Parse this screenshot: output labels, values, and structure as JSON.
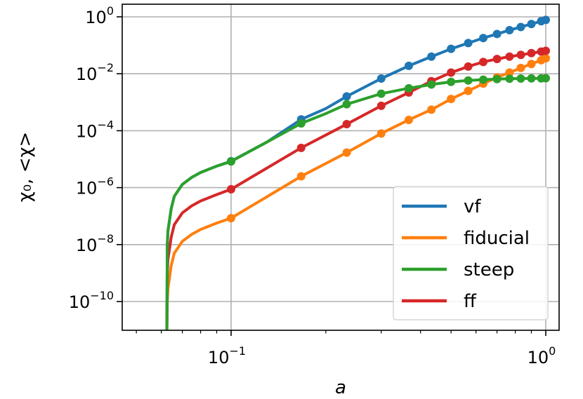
{
  "chart_data": {
    "type": "line",
    "xlabel": "a",
    "ylabel": "χ₀, <χ>",
    "xscale": "log",
    "yscale": "log",
    "xlim": [
      0.05,
      1.1
    ],
    "ylim": [
      1e-11,
      3
    ],
    "grid": true,
    "legend_placement": "bottom-right",
    "x_ticks": [
      {
        "value": 0.1,
        "base": "10",
        "exp": "−1"
      },
      {
        "value": 1,
        "base": "10",
        "exp": "0"
      }
    ],
    "y_ticks": [
      {
        "value": 1,
        "base": "10",
        "exp": "0"
      },
      {
        "value": 0.01,
        "base": "10",
        "exp": "−2"
      },
      {
        "value": 0.0001,
        "base": "10",
        "exp": "−4"
      },
      {
        "value": 1e-06,
        "base": "10",
        "exp": "−6"
      },
      {
        "value": 1e-08,
        "base": "10",
        "exp": "−8"
      },
      {
        "value": 1e-10,
        "base": "10",
        "exp": "−10"
      }
    ],
    "series": [
      {
        "name": "vf",
        "color": "#1f77b4",
        "curve": [
          [
            0.0625,
            1e-11
          ],
          [
            0.0627,
            1e-08
          ],
          [
            0.063,
            3e-08
          ],
          [
            0.0645,
            1.8e-07
          ],
          [
            0.066,
            5e-07
          ],
          [
            0.07,
            1.3e-06
          ],
          [
            0.075,
            2.3e-06
          ],
          [
            0.08,
            3.4e-06
          ],
          [
            0.09,
            5.7e-06
          ],
          [
            0.1,
            8.5e-06
          ],
          [
            0.13,
            4e-05
          ],
          [
            0.167,
            0.00025
          ],
          [
            0.2,
            0.0006
          ],
          [
            0.233,
            0.0016
          ],
          [
            0.3,
            0.0068
          ],
          [
            0.367,
            0.019
          ],
          [
            0.433,
            0.04
          ],
          [
            0.5,
            0.075
          ],
          [
            0.567,
            0.12
          ],
          [
            0.633,
            0.18
          ],
          [
            0.7,
            0.25
          ],
          [
            0.767,
            0.34
          ],
          [
            0.833,
            0.44
          ],
          [
            0.9,
            0.56
          ],
          [
            0.967,
            0.7
          ],
          [
            1.0,
            0.78
          ]
        ],
        "markers": [
          [
            0.1,
            8.5e-06
          ],
          [
            0.167,
            0.00025
          ],
          [
            0.233,
            0.0016
          ],
          [
            0.3,
            0.0068
          ],
          [
            0.367,
            0.019
          ],
          [
            0.433,
            0.04
          ],
          [
            0.5,
            0.075
          ],
          [
            0.567,
            0.12
          ],
          [
            0.633,
            0.18
          ],
          [
            0.7,
            0.25
          ],
          [
            0.767,
            0.34
          ],
          [
            0.833,
            0.44
          ],
          [
            0.9,
            0.56
          ],
          [
            0.967,
            0.7
          ],
          [
            1.0,
            0.78
          ]
        ]
      },
      {
        "name": "fiducial",
        "color": "#ff7f0e",
        "curve": [
          [
            0.0625,
            1e-11
          ],
          [
            0.0627,
            1e-10
          ],
          [
            0.063,
            2.8e-10
          ],
          [
            0.0645,
            1.8e-09
          ],
          [
            0.066,
            5e-09
          ],
          [
            0.07,
            1.3e-08
          ],
          [
            0.075,
            2.3e-08
          ],
          [
            0.08,
            3.4e-08
          ],
          [
            0.09,
            5.7e-08
          ],
          [
            0.1,
            8.5e-08
          ],
          [
            0.167,
            2.5e-06
          ],
          [
            0.233,
            1.7e-05
          ],
          [
            0.3,
            8e-05
          ],
          [
            0.367,
            0.00024
          ],
          [
            0.433,
            0.00055
          ],
          [
            0.5,
            0.0013
          ],
          [
            0.567,
            0.0025
          ],
          [
            0.633,
            0.0045
          ],
          [
            0.7,
            0.0075
          ],
          [
            0.767,
            0.011
          ],
          [
            0.833,
            0.016
          ],
          [
            0.9,
            0.022
          ],
          [
            0.967,
            0.03
          ],
          [
            1.0,
            0.035
          ]
        ],
        "markers": [
          [
            0.1,
            8.5e-08
          ],
          [
            0.167,
            2.5e-06
          ],
          [
            0.233,
            1.7e-05
          ],
          [
            0.3,
            8e-05
          ],
          [
            0.367,
            0.00024
          ],
          [
            0.433,
            0.00055
          ],
          [
            0.5,
            0.0013
          ],
          [
            0.567,
            0.0025
          ],
          [
            0.633,
            0.0045
          ],
          [
            0.7,
            0.0075
          ],
          [
            0.767,
            0.011
          ],
          [
            0.833,
            0.016
          ],
          [
            0.9,
            0.022
          ],
          [
            0.967,
            0.03
          ],
          [
            1.0,
            0.035
          ]
        ]
      },
      {
        "name": "steep",
        "color": "#2ca02c",
        "curve": [
          [
            0.0625,
            1e-11
          ],
          [
            0.0627,
            1e-08
          ],
          [
            0.063,
            3e-08
          ],
          [
            0.0645,
            1.8e-07
          ],
          [
            0.066,
            5e-07
          ],
          [
            0.07,
            1.3e-06
          ],
          [
            0.075,
            2.3e-06
          ],
          [
            0.08,
            3.4e-06
          ],
          [
            0.09,
            5.7e-06
          ],
          [
            0.1,
            8.3e-06
          ],
          [
            0.13,
            4e-05
          ],
          [
            0.167,
            0.00018
          ],
          [
            0.2,
            0.0004
          ],
          [
            0.233,
            0.00085
          ],
          [
            0.3,
            0.002
          ],
          [
            0.367,
            0.0031
          ],
          [
            0.433,
            0.0042
          ],
          [
            0.5,
            0.0052
          ],
          [
            0.567,
            0.0058
          ],
          [
            0.633,
            0.0062
          ],
          [
            0.7,
            0.0065
          ],
          [
            0.767,
            0.0067
          ],
          [
            0.833,
            0.0068
          ],
          [
            0.9,
            0.0069
          ],
          [
            0.967,
            0.0069
          ],
          [
            1.0,
            0.007
          ]
        ],
        "markers": [
          [
            0.1,
            8.3e-06
          ],
          [
            0.167,
            0.00018
          ],
          [
            0.233,
            0.00085
          ],
          [
            0.3,
            0.002
          ],
          [
            0.367,
            0.0031
          ],
          [
            0.433,
            0.0042
          ],
          [
            0.5,
            0.0052
          ],
          [
            0.567,
            0.0058
          ],
          [
            0.633,
            0.0062
          ],
          [
            0.7,
            0.0065
          ],
          [
            0.767,
            0.0067
          ],
          [
            0.833,
            0.0068
          ],
          [
            0.9,
            0.0069
          ],
          [
            0.967,
            0.0069
          ],
          [
            1.0,
            0.007
          ]
        ]
      },
      {
        "name": "ff",
        "color": "#d62728",
        "curve": [
          [
            0.0625,
            1e-11
          ],
          [
            0.0627,
            1e-09
          ],
          [
            0.063,
            3e-09
          ],
          [
            0.0645,
            1.8e-08
          ],
          [
            0.066,
            5e-08
          ],
          [
            0.07,
            1.3e-07
          ],
          [
            0.075,
            2.3e-07
          ],
          [
            0.08,
            3.4e-07
          ],
          [
            0.09,
            5.7e-07
          ],
          [
            0.1,
            8.8e-07
          ],
          [
            0.167,
            2.5e-05
          ],
          [
            0.233,
            0.00017
          ],
          [
            0.3,
            0.00075
          ],
          [
            0.367,
            0.0022
          ],
          [
            0.433,
            0.0055
          ],
          [
            0.5,
            0.011
          ],
          [
            0.567,
            0.018
          ],
          [
            0.633,
            0.026
          ],
          [
            0.7,
            0.033
          ],
          [
            0.767,
            0.04
          ],
          [
            0.833,
            0.046
          ],
          [
            0.9,
            0.053
          ],
          [
            0.967,
            0.06
          ],
          [
            1.0,
            0.064
          ]
        ],
        "markers": [
          [
            0.1,
            8.8e-07
          ],
          [
            0.167,
            2.5e-05
          ],
          [
            0.233,
            0.00017
          ],
          [
            0.3,
            0.00075
          ],
          [
            0.367,
            0.0022
          ],
          [
            0.433,
            0.0055
          ],
          [
            0.5,
            0.011
          ],
          [
            0.567,
            0.018
          ],
          [
            0.633,
            0.026
          ],
          [
            0.7,
            0.033
          ],
          [
            0.767,
            0.04
          ],
          [
            0.833,
            0.046
          ],
          [
            0.9,
            0.053
          ],
          [
            0.967,
            0.06
          ],
          [
            1.0,
            0.064
          ]
        ]
      }
    ],
    "draw_order": [
      1,
      3,
      0,
      2
    ]
  }
}
